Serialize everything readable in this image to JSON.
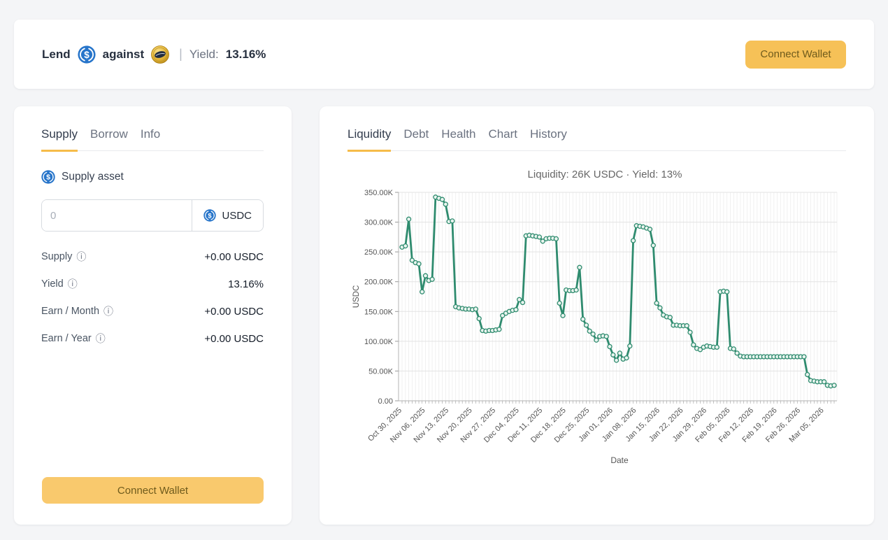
{
  "page": {
    "background": "#f4f5f7"
  },
  "header": {
    "lend_label": "Lend",
    "against_label": "against",
    "separator": "|",
    "yield_label": "Yield:",
    "yield_value": "13.16%",
    "connect_wallet_label": "Connect Wallet"
  },
  "supply_panel": {
    "tabs": [
      {
        "label": "Supply",
        "active": true
      },
      {
        "label": "Borrow",
        "active": false
      },
      {
        "label": "Info",
        "active": false
      }
    ],
    "supply_asset_label": "Supply asset",
    "amount_input": {
      "value": "",
      "placeholder": "0"
    },
    "asset_selector": "USDC",
    "stats": [
      {
        "label": "Supply",
        "value": "+0.00 USDC"
      },
      {
        "label": "Yield",
        "value": "13.16%"
      },
      {
        "label": "Earn / Month",
        "value": "+0.00 USDC"
      },
      {
        "label": "Earn / Year",
        "value": "+0.00 USDC"
      }
    ],
    "connect_wallet_label": "Connect Wallet"
  },
  "market_panel": {
    "tabs": [
      {
        "label": "Liquidity",
        "active": true
      },
      {
        "label": "Debt",
        "active": false
      },
      {
        "label": "Health",
        "active": false
      },
      {
        "label": "Chart",
        "active": false
      },
      {
        "label": "History",
        "active": false
      }
    ]
  },
  "chart_data": {
    "type": "line",
    "title": "Liquidity: 26K USDC · Yield: 13%",
    "xlabel": "Date",
    "ylabel": "USDC",
    "unit": "thousand USDC",
    "ylim": [
      0,
      350
    ],
    "grid": true,
    "legend": "none",
    "line_color": "#2e8b6e",
    "marker_fill": "#e9f4ef",
    "y_tick_labels": [
      "0.00",
      "50.00K",
      "100.00K",
      "150.00K",
      "200.00K",
      "250.00K",
      "300.00K",
      "350.00K"
    ],
    "x_interval": "daily",
    "tick_every": 7,
    "x_tick_labels": [
      "Oct 30, 2025",
      "Nov 06, 2025",
      "Nov 13, 2025",
      "Nov 20, 2025",
      "Nov 27, 2025",
      "Dec 04, 2025",
      "Dec 11, 2025",
      "Dec 18, 2025",
      "Dec 25, 2025",
      "Jan 01, 2026",
      "Jan 08, 2026",
      "Jan 15, 2026",
      "Jan 22, 2026",
      "Jan 29, 2026",
      "Feb 05, 2026",
      "Feb 12, 2026",
      "Feb 19, 2026",
      "Feb 26, 2026",
      "Mar 05, 2026"
    ],
    "values": [
      258,
      260,
      305,
      236,
      232,
      230,
      183,
      210,
      202,
      204,
      342,
      340,
      338,
      330,
      301,
      302,
      158,
      156,
      155,
      154,
      154,
      153,
      154,
      138,
      118,
      117,
      118,
      118,
      119,
      120,
      143,
      147,
      150,
      152,
      153,
      170,
      165,
      277,
      278,
      277,
      276,
      275,
      268,
      272,
      273,
      273,
      272,
      164,
      143,
      186,
      185,
      185,
      186,
      224,
      137,
      127,
      117,
      112,
      102,
      108,
      109,
      108,
      91,
      77,
      68,
      80,
      70,
      72,
      92,
      269,
      294,
      293,
      292,
      290,
      288,
      261,
      164,
      156,
      144,
      141,
      140,
      127,
      127,
      126,
      126,
      126,
      115,
      94,
      88,
      86,
      90,
      92,
      91,
      90,
      90,
      183,
      184,
      183,
      88,
      87,
      80,
      75,
      74,
      74,
      74,
      74,
      74,
      74,
      74,
      74,
      74,
      74,
      74,
      74,
      74,
      74,
      74,
      74,
      74,
      74,
      74,
      44,
      34,
      33,
      32,
      32,
      32,
      26,
      25,
      26
    ]
  },
  "icons": {
    "info_glyph": "ⓘ",
    "usdc_icon_color": "#2775ca",
    "collateral_coin_color": "#e0b339"
  },
  "colors": {
    "accent_amber_header": "#f6c157",
    "accent_amber_panel": "#f9c96d",
    "tab_underline": "#f6bc4a",
    "chart_line": "#2e8b6e",
    "page_background": "#f4f5f7"
  }
}
